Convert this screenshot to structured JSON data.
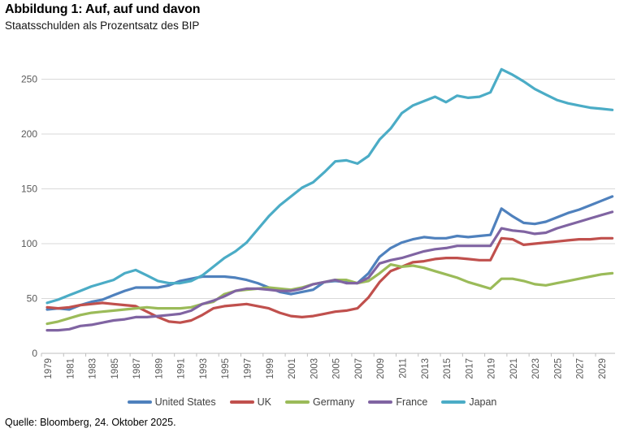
{
  "header": {
    "title": "Abbildung 1: Auf, auf und davon",
    "subtitle": "Staatsschulden als Prozentsatz des BIP"
  },
  "footer": {
    "source": "Quelle: Bloomberg, 24. Oktober 2025."
  },
  "chart_data": {
    "type": "line",
    "title": "Abbildung 1: Auf, auf und davon",
    "subtitle": "Staatsschulden als Prozentsatz des BIP",
    "xlabel": "",
    "ylabel": "",
    "x_start": 1979,
    "x_end": 2030,
    "xticks": [
      1979,
      1981,
      1983,
      1985,
      1987,
      1989,
      1991,
      1993,
      1995,
      1997,
      1999,
      2001,
      2003,
      2005,
      2007,
      2009,
      2011,
      2013,
      2015,
      2017,
      2019,
      2021,
      2023,
      2025,
      2027,
      2029
    ],
    "yticks": [
      0,
      50,
      100,
      150,
      200,
      250
    ],
    "ylim": [
      0,
      270
    ],
    "grid": "horizontal",
    "legend_position": "bottom",
    "axis_colors": {
      "gridline": "#d9d9d9",
      "axis_line": "#bfbfbf",
      "tick_label": "#595959"
    },
    "series": [
      {
        "name": "United States",
        "color": "#4f81bd",
        "values": [
          40,
          41,
          40,
          44,
          47,
          49,
          53,
          57,
          60,
          60,
          60,
          62,
          66,
          68,
          70,
          70,
          70,
          69,
          67,
          64,
          60,
          56,
          54,
          56,
          58,
          65,
          66,
          65,
          64,
          73,
          88,
          96,
          101,
          104,
          106,
          105,
          105,
          107,
          106,
          107,
          108,
          132,
          125,
          119,
          118,
          120,
          124,
          128,
          131,
          135,
          139,
          143
        ]
      },
      {
        "name": "UK",
        "color": "#c0504d",
        "values": [
          42,
          41,
          42,
          44,
          45,
          46,
          45,
          44,
          43,
          38,
          33,
          29,
          28,
          30,
          35,
          41,
          43,
          44,
          45,
          43,
          41,
          37,
          34,
          33,
          34,
          36,
          38,
          39,
          41,
          51,
          65,
          75,
          79,
          83,
          84,
          86,
          87,
          87,
          86,
          85,
          85,
          105,
          104,
          99,
          100,
          101,
          102,
          103,
          104,
          104,
          105,
          105
        ]
      },
      {
        "name": "Germany",
        "color": "#9bbb59",
        "values": [
          27,
          29,
          32,
          35,
          37,
          38,
          39,
          40,
          41,
          42,
          41,
          41,
          41,
          42,
          45,
          47,
          54,
          57,
          58,
          59,
          60,
          59,
          58,
          60,
          63,
          65,
          67,
          67,
          64,
          66,
          73,
          81,
          79,
          80,
          78,
          75,
          72,
          69,
          65,
          62,
          59,
          68,
          68,
          66,
          63,
          62,
          64,
          66,
          68,
          70,
          72,
          73
        ]
      },
      {
        "name": "France",
        "color": "#8064a2",
        "values": [
          21,
          21,
          22,
          25,
          26,
          28,
          30,
          31,
          33,
          33,
          34,
          35,
          36,
          39,
          45,
          48,
          52,
          57,
          59,
          59,
          58,
          57,
          57,
          59,
          63,
          65,
          67,
          64,
          64,
          69,
          82,
          85,
          87,
          90,
          93,
          95,
          96,
          98,
          98,
          98,
          98,
          114,
          112,
          111,
          109,
          110,
          114,
          117,
          120,
          123,
          126,
          129
        ]
      },
      {
        "name": "Japan",
        "color": "#4bacc6",
        "values": [
          46,
          49,
          53,
          57,
          61,
          64,
          67,
          73,
          76,
          71,
          66,
          64,
          64,
          66,
          71,
          79,
          87,
          93,
          101,
          113,
          125,
          135,
          143,
          151,
          156,
          165,
          175,
          176,
          173,
          180,
          195,
          205,
          219,
          226,
          230,
          234,
          229,
          235,
          233,
          234,
          238,
          259,
          254,
          248,
          241,
          236,
          231,
          228,
          226,
          224,
          223,
          222
        ]
      }
    ]
  }
}
